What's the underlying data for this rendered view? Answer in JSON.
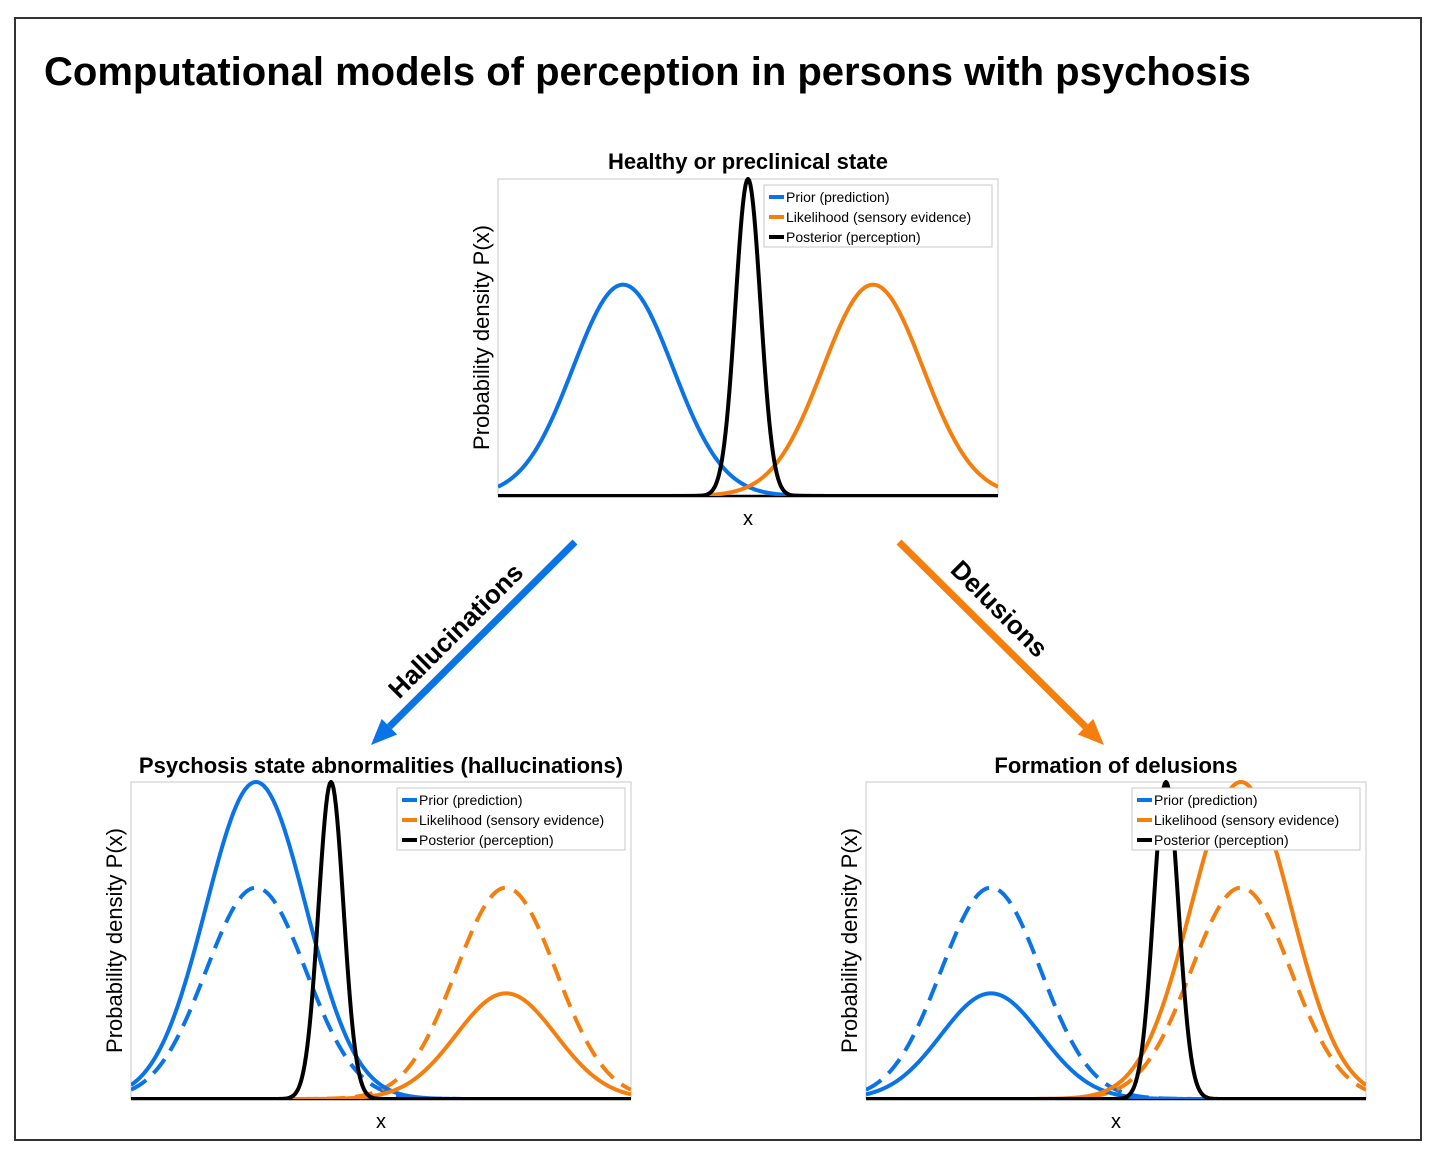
{
  "title": "Computational models of perception in persons with psychosis",
  "colors": {
    "prior": "#0a73e6",
    "likelihood": "#f57f0e",
    "posterior": "#000000",
    "arrow_hallucinations": "#0a73e6",
    "arrow_delusions": "#f57f0e"
  },
  "arrows": {
    "hallucinations": "Hallucinations",
    "delusions": "Delusions"
  },
  "chart_data": [
    {
      "type": "line",
      "title": "Healthy or preclinical state",
      "xlabel": "x",
      "ylabel": "Probability density P(x)",
      "xlim": [
        0,
        10
      ],
      "ylim": [
        0,
        1.5
      ],
      "legend_position": "top-right",
      "grid": false,
      "series": [
        {
          "name": "Prior (prediction)",
          "role": "prior",
          "style": "solid",
          "mean": 2.5,
          "sd": 1.0,
          "peak": 1.0
        },
        {
          "name": "Likelihood (sensory evidence)",
          "role": "likelihood",
          "style": "solid",
          "mean": 7.5,
          "sd": 1.0,
          "peak": 1.0
        },
        {
          "name": "Posterior (perception)",
          "role": "posterior",
          "style": "solid",
          "mean": 5.0,
          "sd": 0.25,
          "peak": 1.5
        }
      ]
    },
    {
      "type": "line",
      "title": "Psychosis state abnormalities (hallucinations)",
      "xlabel": "x",
      "ylabel": "Probability density P(x)",
      "xlim": [
        0,
        10
      ],
      "ylim": [
        0,
        1.5
      ],
      "legend_position": "top-right",
      "grid": false,
      "series": [
        {
          "name": "Prior (prediction)",
          "role": "prior",
          "style": "solid",
          "mean": 2.5,
          "sd": 1.0,
          "peak": 1.5
        },
        {
          "name": "Likelihood (sensory evidence)",
          "role": "likelihood",
          "style": "solid",
          "mean": 7.5,
          "sd": 1.0,
          "peak": 0.5
        },
        {
          "name": "Posterior (perception)",
          "role": "posterior",
          "style": "solid",
          "mean": 4.0,
          "sd": 0.25,
          "peak": 1.5
        },
        {
          "role": "prior",
          "style": "dashed",
          "mean": 2.5,
          "sd": 1.0,
          "peak": 1.0
        },
        {
          "role": "likelihood",
          "style": "dashed",
          "mean": 7.5,
          "sd": 1.0,
          "peak": 1.0
        }
      ]
    },
    {
      "type": "line",
      "title": "Formation of delusions",
      "xlabel": "x",
      "ylabel": "Probability density P(x)",
      "xlim": [
        0,
        10
      ],
      "ylim": [
        0,
        1.5
      ],
      "legend_position": "top-right",
      "grid": false,
      "series": [
        {
          "name": "Prior (prediction)",
          "role": "prior",
          "style": "solid",
          "mean": 2.5,
          "sd": 1.0,
          "peak": 0.5
        },
        {
          "name": "Likelihood (sensory evidence)",
          "role": "likelihood",
          "style": "solid",
          "mean": 7.5,
          "sd": 1.0,
          "peak": 1.5
        },
        {
          "name": "Posterior (perception)",
          "role": "posterior",
          "style": "solid",
          "mean": 6.0,
          "sd": 0.25,
          "peak": 1.5
        },
        {
          "role": "prior",
          "style": "dashed",
          "mean": 2.5,
          "sd": 1.0,
          "peak": 1.0
        },
        {
          "role": "likelihood",
          "style": "dashed",
          "mean": 7.5,
          "sd": 1.0,
          "peak": 1.0
        }
      ]
    }
  ]
}
